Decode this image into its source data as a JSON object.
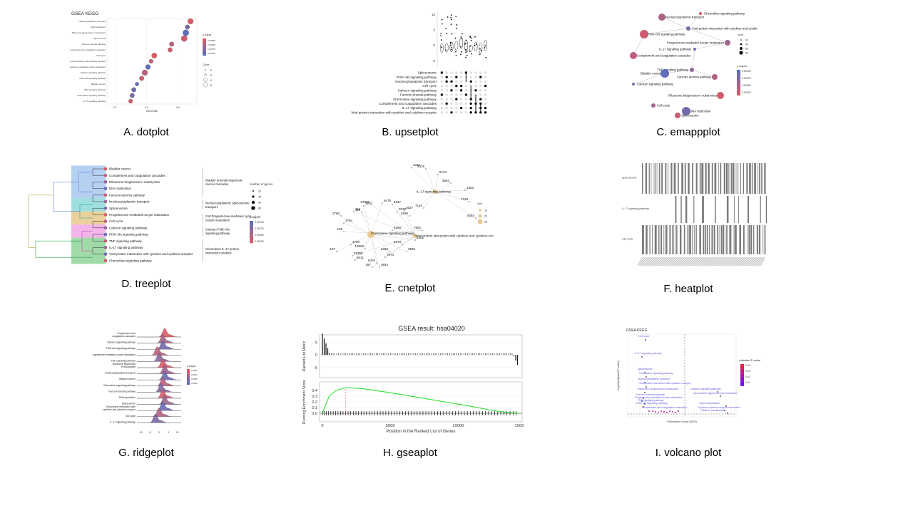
{
  "captions": {
    "a": "A. dotplot",
    "b": "B. upsetplot",
    "c": "C. emappplot",
    "d": "D. treeplot",
    "e": "E. cnetplot",
    "f": "F. heatplot",
    "g": "G. ridgeplot",
    "h": "H. gseaplot",
    "i": "I. volcano plot"
  },
  "chart_data": [
    {
      "id": "dotplot",
      "type": "scatter",
      "title": "GSEA KEGG",
      "xlabel": "GeneRatio",
      "xticks": [
        "0.2",
        "0.4",
        "0.6"
      ],
      "categories": [
        "Nucleocytoplasmic transport",
        "DNA replication",
        "Ribosome biogenesis in eukaryotes",
        "Spliceosome",
        "Fanconi anemia pathway",
        "Complement and coagulation cascades",
        "Cell cycle",
        "Viral protein interaction with cytokine and cytokine receptor",
        "Progesterone-mediated oocyte maturation",
        "Calcium signaling pathway",
        "PI3K-Akt signaling pathway",
        "Bladder cancer",
        "TNF signaling pathway",
        "Chemokine signaling pathway",
        "IL-17 signaling pathway"
      ],
      "gene_ratio": [
        0.68,
        0.66,
        0.65,
        0.64,
        0.56,
        0.55,
        0.45,
        0.43,
        0.41,
        0.39,
        0.37,
        0.34,
        0.32,
        0.31,
        0.3
      ],
      "p_adjust": [
        0.0002,
        0.0008,
        0.001,
        0.0003,
        0.0004,
        0.0003,
        0.0002,
        0.0003,
        0.001,
        0.0004,
        0.0003,
        0.0009,
        0.0009,
        0.0008,
        0.0003
      ],
      "count": [
        55,
        40,
        60,
        60,
        40,
        40,
        50,
        35,
        45,
        55,
        40,
        30,
        40,
        40,
        35
      ],
      "legend_title": "p.adjust",
      "legend_ticks": [
        "0.00025",
        "0.00050",
        "0.00075",
        "0.00100"
      ],
      "size_title": "Count",
      "size_ticks": [
        "20",
        "40",
        "60",
        "80"
      ]
    },
    {
      "id": "upsetplot",
      "type": "upset",
      "y_ticks": [
        "10",
        "5",
        "0",
        "-5"
      ],
      "sets": [
        "Spliceosome",
        "PI3K-Akt signaling pathway",
        "Nucleocytoplasmic transport",
        "Cell cycle",
        "Calcium signaling pathway",
        "Fanconi anemia pathway",
        "Chemokine signaling pathway",
        "Complement and coagulation cascades",
        "IL-17 signaling pathway",
        "Viral protein interaction with cytokine and cytokine receptor"
      ]
    },
    {
      "id": "emapplot",
      "type": "network",
      "nodes": [
        "Chemokine signaling pathway",
        "Nucleocytoplasmic transport",
        "Viral protein interaction with cytokine and cytokine receptor",
        "PI3K-Akt signaling pathway",
        "Progesterone-mediated oocyte maturation",
        "IL-17 signaling pathway",
        "Complement and coagulation cascades",
        "TNF signaling pathway",
        "Bladder cancer",
        "Fanconi anemia pathway",
        "Calcium signaling pathway",
        "Ribosome biogenesis in eukaryotes",
        "Cell cycle",
        "DNA replication",
        "Spliceosome"
      ],
      "size_title": "size",
      "size_ticks": [
        "20",
        "40",
        "60",
        "80"
      ],
      "legend_title": "p.adjust",
      "legend_ticks": [
        "0.00100",
        "0.00075",
        "0.00050",
        "0.00025"
      ]
    },
    {
      "id": "treeplot",
      "type": "tree",
      "leaves": [
        "Bladder cancer",
        "Complement and coagulation cascades",
        "Ribosome biogenesis in eukaryotes",
        "DNA replication",
        "Fanconi anemia pathway",
        "Nucleocytoplasmic transport",
        "Spliceosome",
        "Progesterone-mediated oocyte maturation",
        "Cell cycle",
        "Calcium signaling pathway",
        "PI3K-Akt signaling pathway",
        "TNF signaling pathway",
        "IL-17 signaling pathway",
        "Viral protein interaction with cytokine and cytokine receptor",
        "Chemokine signaling pathway"
      ],
      "clusters": [
        "Bladder anemia biogenesis cancer cascades",
        "Nucleocytoplasmic Spliceosome transport",
        "Cell Progesterone-mediated cycle oocyte maturation",
        "Calcium PI3K-Akt signaling pathway",
        "Chemokine IL-17 protein interaction cytokine"
      ],
      "genes_title": "number of genes",
      "genes_ticks": [
        "20",
        "40",
        "60",
        "80"
      ],
      "legend_title": "p.adjust",
      "legend_ticks": [
        "0.00100",
        "0.00075",
        "0.00050",
        "0.00025"
      ]
    },
    {
      "id": "cnetplot",
      "type": "network",
      "hubs": [
        "IL-17 signaling pathway",
        "Chemokine signaling pathway",
        "Viral protein interaction with cytokine and cytokine receptor"
      ],
      "genes": [
        "4312",
        "4318",
        "5743",
        "3553",
        "2353",
        "7128",
        "6347",
        "7124",
        "3627",
        "2920",
        "3576",
        "6354",
        "6366",
        "7852",
        "6352",
        "6373",
        "3569",
        "6363",
        "7074",
        "6376",
        "3844",
        "157",
        "6011",
        "10563",
        "53358",
        "107",
        "4790",
        "108",
        "1794",
        "2786",
        "114",
        "409",
        "2870",
        "57580",
        "9475"
      ],
      "size_title": "size",
      "size_ticks": [
        "15",
        "20",
        "25"
      ]
    },
    {
      "id": "heatplot",
      "type": "heatmap",
      "rows": [
        "Spliceosome",
        "IL-17 signaling pathway",
        "Cell cycle"
      ]
    },
    {
      "id": "ridgeplot",
      "type": "ridge",
      "categories": [
        "Complement and coagulation cascades",
        "Calcium signaling pathway",
        "PI3K-Akt signaling pathway",
        "Progesterone-mediated oocyte maturation",
        "TNF signaling pathway",
        "Ribosome biogenesis in eukaryotes",
        "Nucleocytoplasmic transport",
        "Bladder cancer",
        "Chemokine signaling pathway",
        "Fanconi anemia pathway",
        "DNA replication",
        "Spliceosome",
        "Viral protein interaction with cytokine and cytokine receptor",
        "Cell cycle",
        "IL-17 signaling pathway"
      ],
      "peaks": [
        3,
        2,
        2,
        -1,
        0,
        2,
        3,
        3,
        2,
        1,
        2,
        3,
        2,
        0,
        -2
      ],
      "xticks": [
        "-10",
        "-5",
        "0",
        "5",
        "10"
      ],
      "legend_title": "p.adjust",
      "legend_ticks": [
        "0.0002",
        "0.0004",
        "0.0006",
        "0.0008"
      ]
    },
    {
      "id": "gseaplot",
      "type": "line",
      "title": "GSEA result: hsa04020",
      "xlabel": "Position in the Ranked List of Genes",
      "ylabel_top": "Ranked List Metric",
      "ylabel_bottom": "Running Enrichment Score",
      "xticks": [
        "0",
        "5000",
        "10000",
        "1500"
      ],
      "top_yticks": [
        "5",
        "0",
        "-5"
      ],
      "bottom_yticks": [
        "0.4",
        "0.3",
        "0.2",
        "0.1",
        "0.0"
      ],
      "x": [
        0,
        500,
        1000,
        1700,
        3000,
        5000,
        7000,
        9000,
        11000,
        12500,
        13500,
        14500
      ],
      "es": [
        0.0,
        0.3,
        0.4,
        0.45,
        0.43,
        0.36,
        0.28,
        0.2,
        0.12,
        0.05,
        0.02,
        0.0
      ],
      "peak_x": 1700
    },
    {
      "id": "volcano",
      "type": "scatter",
      "title": "GSEA KEGG",
      "xlabel": "Enrichment Score (NES)",
      "ylabel": "-log10(Adjusted P-value)",
      "legend_title": "Adjusted P-value",
      "legend_ticks": [
        "0.04",
        "0.03",
        "0.02",
        "0.01"
      ],
      "labels_left": [
        "Cell cycle",
        "IL-17 signaling pathway",
        "Spliceosome",
        "Chemokine signaling pathway",
        "Nucleocytoplasmic transport",
        "Viral protein interaction with cytokine receptor",
        "Ribosome biogenesis in eukaryotes",
        "Fanconi anemia pathway",
        "Progesterone-mediated oocyte maturation",
        "TNF signaling pathway",
        "PI3K-Akt signaling pathway",
        "Complement and coagulation cascades"
      ],
      "labels_right": [
        "Calcium signaling pathway",
        "Neuroactive ligand-receptor interaction",
        "Taste transduction",
        "Cytokine-cytokine receptor interaction",
        "Olfactory transduction"
      ]
    }
  ]
}
